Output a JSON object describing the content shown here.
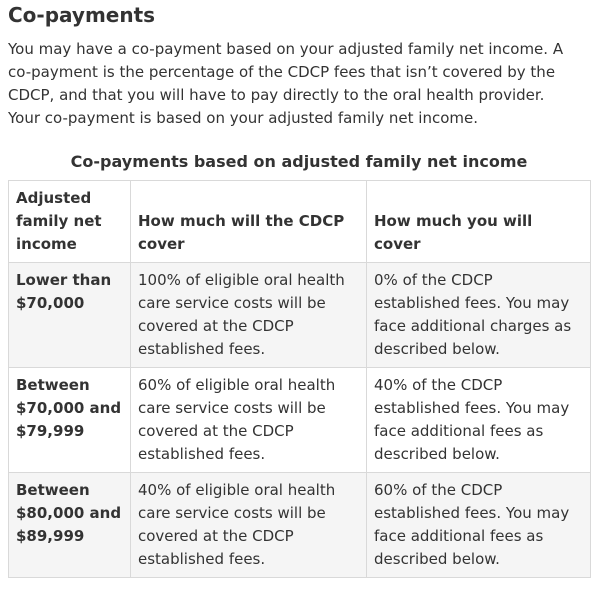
{
  "section": {
    "heading": "Co-payments",
    "intro": "You may have a co-payment based on your adjusted family net income. A co-payment is the percentage of the CDCP fees that isn’t covered by the CDCP, and that you will have to pay directly to the oral health provider. Your co-payment is based on your adjusted family net income."
  },
  "table": {
    "caption": "Co-payments based on adjusted family net income",
    "headers": [
      "Adjusted family net income",
      "How much will the CDCP cover",
      "How much you will cover"
    ],
    "rows": [
      {
        "income": "Lower than $70,000",
        "cdcp_cover": "100% of eligible oral health care service costs will be covered at the CDCP established fees.",
        "you_cover": "0% of the CDCP established fees. You may face additional charges as described below."
      },
      {
        "income": "Between $70,000 and $79,999",
        "cdcp_cover": "60% of eligible oral health care service costs will be covered at the CDCP established fees.",
        "you_cover": "40% of the CDCP established fees. You may face additional fees as described below."
      },
      {
        "income": "Between $80,000 and $89,999",
        "cdcp_cover": "40% of eligible oral health care service costs will be covered at the CDCP established fees.",
        "you_cover": "60% of the CDCP established fees. You may face additional fees as described below."
      }
    ]
  }
}
